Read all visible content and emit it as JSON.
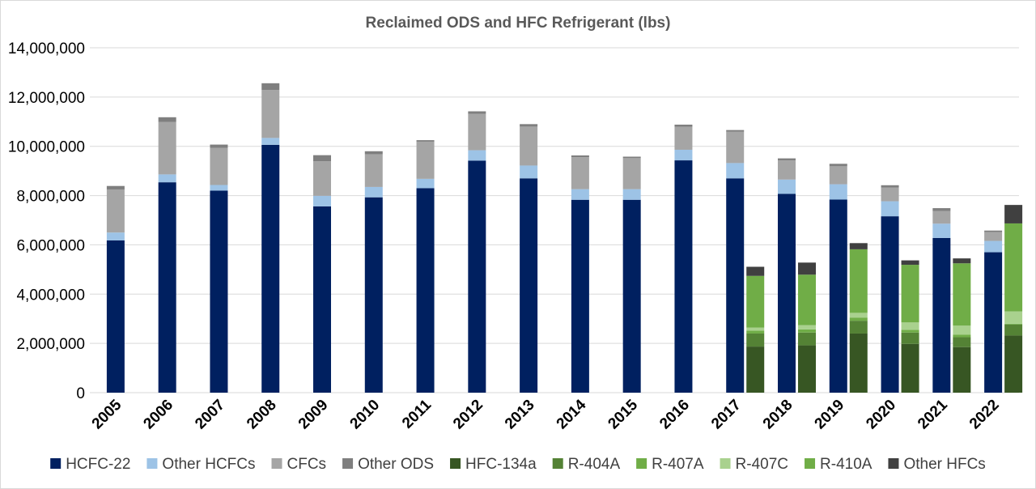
{
  "chart_data": {
    "type": "bar",
    "stacked": true,
    "title": "Reclaimed ODS and HFC Refrigerant (lbs)",
    "xlabel": "",
    "ylabel": "",
    "ylim": [
      0,
      14000000
    ],
    "yticks": [
      0,
      2000000,
      4000000,
      6000000,
      8000000,
      10000000,
      12000000,
      14000000
    ],
    "ytick_labels": [
      "0",
      "2,000,000",
      "4,000,000",
      "6,000,000",
      "8,000,000",
      "10,000,000",
      "12,000,000",
      "14,000,000"
    ],
    "grid": true,
    "legend_position": "bottom",
    "categories": [
      "2005",
      "2006",
      "2007",
      "2008",
      "2009",
      "2010",
      "2011",
      "2012",
      "2013",
      "2014",
      "2015",
      "2016",
      "2017",
      "2018",
      "2019",
      "2020",
      "2021",
      "2022"
    ],
    "groups": [
      {
        "name": "ODS",
        "series": [
          {
            "name": "HCFC-22",
            "color": "#002060",
            "values": [
              6180000,
              8540000,
              8200000,
              10060000,
              7560000,
              7930000,
              8300000,
              9420000,
              8700000,
              7830000,
              7830000,
              9430000,
              8700000,
              8070000,
              7840000,
              7160000,
              6280000,
              5700000
            ]
          },
          {
            "name": "Other HCFCs",
            "color": "#9dc3e6",
            "values": [
              320000,
              320000,
              230000,
              280000,
              430000,
              420000,
              380000,
              420000,
              520000,
              430000,
              430000,
              430000,
              620000,
              580000,
              620000,
              610000,
              580000,
              460000
            ]
          },
          {
            "name": "CFCs",
            "color": "#a5a5a5",
            "values": [
              1750000,
              2130000,
              1510000,
              1950000,
              1400000,
              1330000,
              1510000,
              1480000,
              1580000,
              1300000,
              1260000,
              930000,
              1270000,
              780000,
              730000,
              560000,
              510000,
              360000
            ]
          },
          {
            "name": "Other ODS",
            "color": "#7f7f7f",
            "values": [
              140000,
              190000,
              130000,
              270000,
              250000,
              120000,
              60000,
              100000,
              100000,
              70000,
              60000,
              90000,
              70000,
              80000,
              100000,
              90000,
              120000,
              60000
            ]
          }
        ]
      },
      {
        "name": "HFC",
        "series": [
          {
            "name": "HFC-134a",
            "color": "#375623",
            "values": [
              0,
              0,
              0,
              0,
              0,
              0,
              0,
              0,
              0,
              0,
              0,
              0,
              1870000,
              1920000,
              2400000,
              1980000,
              1850000,
              2320000
            ]
          },
          {
            "name": "R-404A",
            "color": "#548235",
            "values": [
              0,
              0,
              0,
              0,
              0,
              0,
              0,
              0,
              0,
              0,
              0,
              0,
              530000,
              520000,
              520000,
              460000,
              400000,
              450000
            ]
          },
          {
            "name": "R-407A",
            "color": "#70ad47",
            "values": [
              0,
              0,
              0,
              0,
              0,
              0,
              0,
              0,
              0,
              0,
              0,
              0,
              120000,
              130000,
              130000,
              110000,
              100000,
              30000
            ]
          },
          {
            "name": "R-407C",
            "color": "#a9d18e",
            "values": [
              0,
              0,
              0,
              0,
              0,
              0,
              0,
              0,
              0,
              0,
              0,
              0,
              120000,
              170000,
              190000,
              300000,
              370000,
              500000
            ]
          },
          {
            "name": "R-410A",
            "color": "#70ad47",
            "values": [
              0,
              0,
              0,
              0,
              0,
              0,
              0,
              0,
              0,
              0,
              0,
              0,
              2100000,
              2050000,
              2580000,
              2340000,
              2530000,
              3570000
            ]
          },
          {
            "name": "Other HFCs",
            "color": "#404040",
            "values": [
              0,
              0,
              0,
              0,
              0,
              0,
              0,
              0,
              0,
              0,
              0,
              0,
              370000,
              490000,
              250000,
              180000,
              200000,
              750000
            ]
          }
        ]
      }
    ]
  }
}
